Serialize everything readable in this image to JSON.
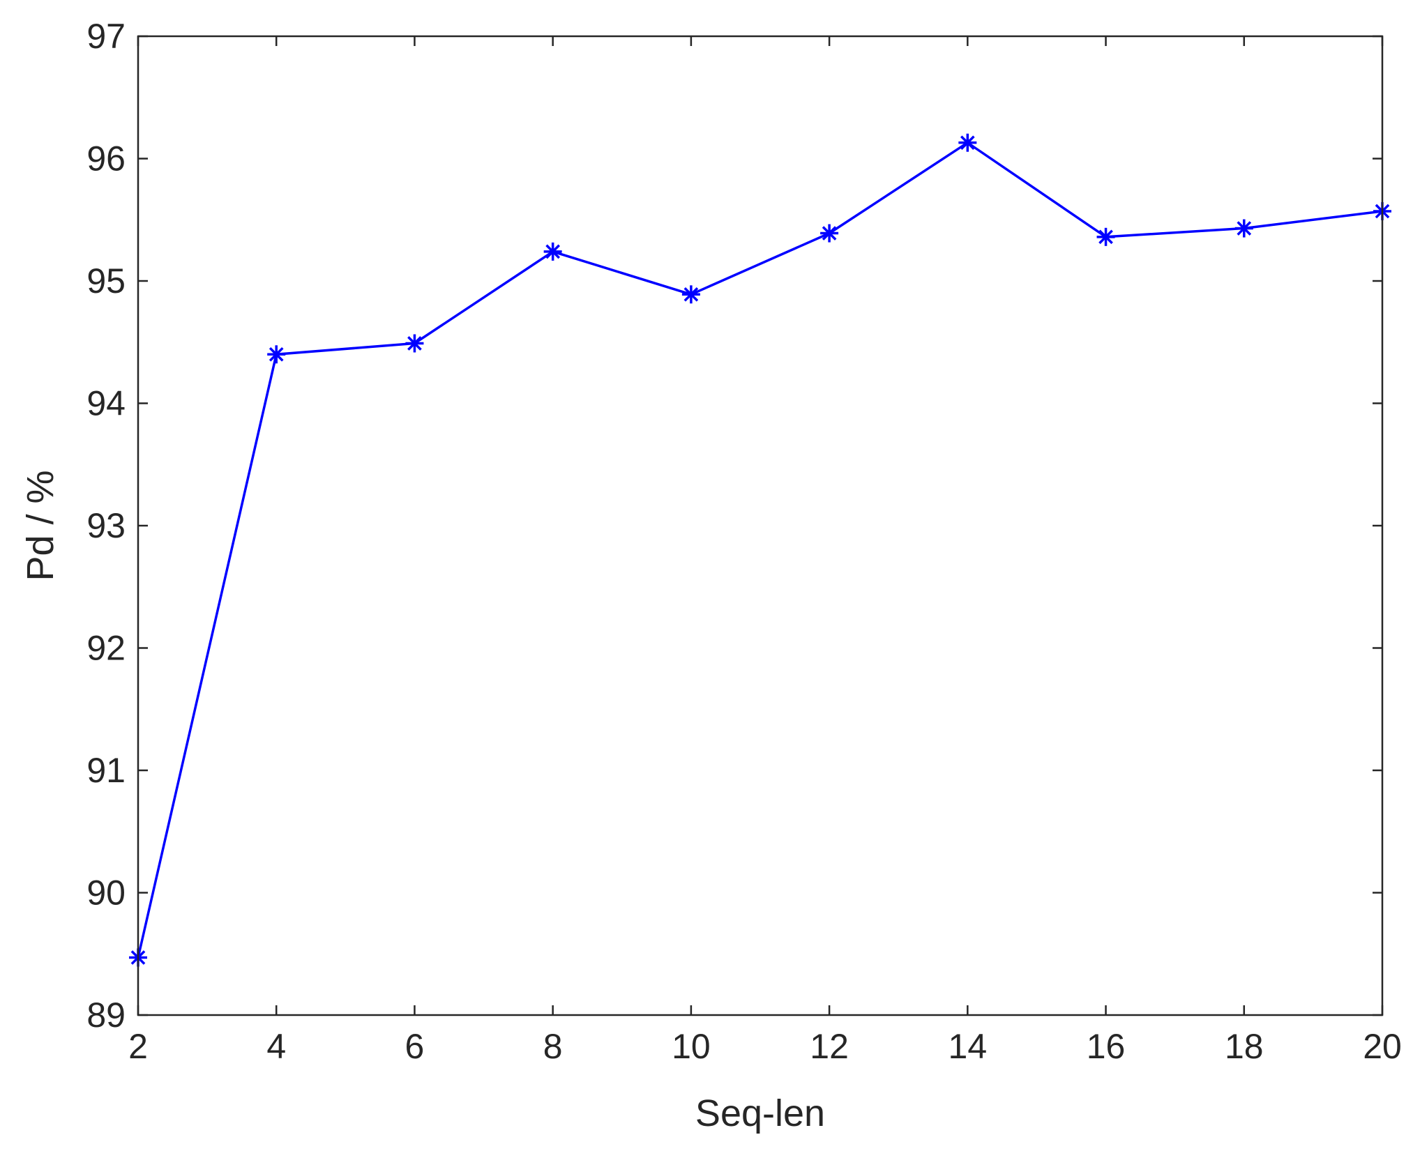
{
  "chart_data": {
    "type": "line",
    "title": "",
    "xlabel": "Seq-len",
    "ylabel": "Pd / %",
    "xlim": [
      2,
      20
    ],
    "ylim": [
      89,
      97
    ],
    "xticks": [
      2,
      4,
      6,
      8,
      10,
      12,
      14,
      16,
      18,
      20
    ],
    "yticks": [
      89,
      90,
      91,
      92,
      93,
      94,
      95,
      96,
      97
    ],
    "grid": false,
    "legend": "none",
    "series": [
      {
        "color": "#0000ff",
        "marker": "asterisk",
        "x": [
          2,
          4,
          6,
          8,
          10,
          12,
          14,
          16,
          18,
          20
        ],
        "y": [
          89.47,
          94.4,
          94.49,
          95.24,
          94.89,
          95.39,
          96.13,
          95.36,
          95.43,
          95.57
        ]
      }
    ]
  }
}
